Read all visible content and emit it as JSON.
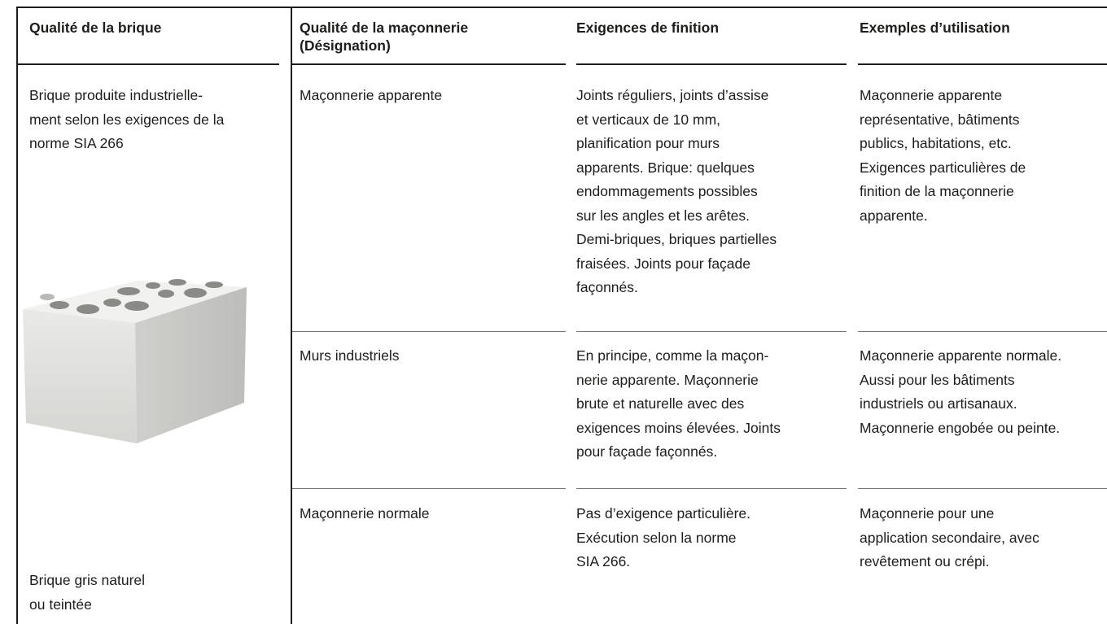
{
  "header": [
    [
      "Qualité de la brique"
    ],
    [
      "Qualité de la maçonnerie",
      "(Désignation)"
    ],
    [
      "Exigences de finition"
    ],
    [
      "Exemples d’utilisation"
    ]
  ],
  "brick_quality": {
    "description": [
      "Brique produite industrielle-",
      "ment selon les exigences de la",
      "norme SIA 266"
    ],
    "color": [
      "Brique gris naturel",
      "ou teintée"
    ]
  },
  "rows": [
    [
      [
        "Maçonnerie apparente"
      ],
      [
        "Joints réguliers, joints d’assise",
        "et verticaux de 10 mm,",
        "planification pour murs",
        "apparents. Brique: quelques",
        "endommagements possibles",
        "sur les angles et les arêtes.",
        "Demi-briques, briques partielles",
        "fraisées. Joints pour façade",
        "façonnés."
      ],
      [
        "Maçonnerie apparente",
        "représentative, bâtiments",
        "publics, habitations, etc.",
        "Exigences particulières de",
        "finition de la maçonnerie",
        "apparente."
      ]
    ],
    [
      [
        "Murs industriels"
      ],
      [
        "En principe, comme la maçon-",
        "nerie apparente. Maçonnerie",
        "brute et naturelle avec des",
        "exigences moins élevées. Joints",
        "pour façade façonnés."
      ],
      [
        "Maçonnerie apparente normale.",
        "Aussi pour les bâtiments",
        "industriels ou artisanaux.",
        "Maçonnerie engobée ou peinte."
      ]
    ],
    [
      [
        "Maçonnerie normale"
      ],
      [
        "Pas d’exigence particulière.",
        "Exécution selon la norme",
        "SIA 266."
      ],
      [
        "Maçonnerie pour une",
        "application secondaire, avec",
        "revêtement ou crépi."
      ]
    ]
  ]
}
